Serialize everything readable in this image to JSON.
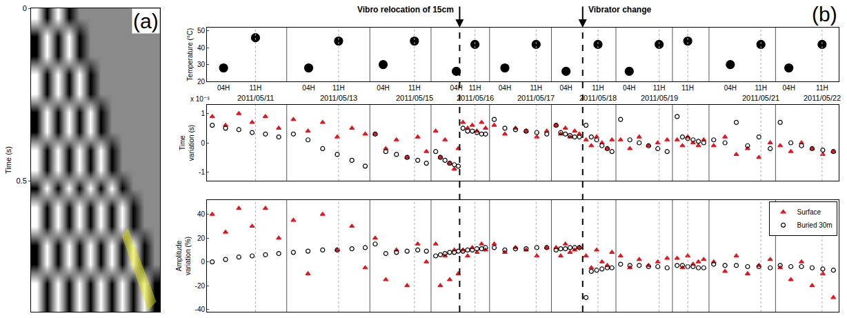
{
  "chart_data": [
    {
      "type": "heatmap",
      "label": "(a)",
      "y_label": "Time (s)",
      "x": [
        0.5,
        1.5,
        2.5,
        3.5,
        4.5,
        5.5,
        6.5,
        7.5,
        8.5,
        9.5,
        10.5,
        11.5
      ],
      "y": [
        0.0275,
        0.0825,
        0.1375,
        0.1925,
        0.2475,
        0.3025,
        0.3575,
        0.4125,
        0.4675,
        0.5225,
        0.5775,
        0.6325,
        0.6875,
        0.7425,
        0.7975,
        0.8525
      ],
      "z": [
        [
          1,
          -1,
          1,
          -1,
          0,
          0,
          0,
          0,
          0,
          0,
          0,
          0
        ],
        [
          -1,
          1,
          -1,
          1,
          -1,
          0,
          0,
          0,
          0,
          0,
          0,
          0
        ],
        [
          -1,
          1,
          -1,
          1,
          -1,
          0,
          0,
          0,
          0,
          0,
          0,
          0
        ],
        [
          1,
          -1,
          1,
          -1,
          1,
          -1,
          0,
          0,
          0,
          0,
          0,
          0
        ],
        [
          1,
          -1,
          1,
          -1,
          1,
          -1,
          0,
          0,
          0,
          0,
          0,
          0
        ],
        [
          -1,
          1,
          -1,
          1,
          -1,
          1,
          -1,
          0,
          0,
          0,
          0,
          0
        ],
        [
          -1,
          1,
          -1,
          1,
          -1,
          1,
          -1,
          0,
          0,
          0,
          0,
          0
        ],
        [
          1,
          -1,
          1,
          -1,
          1,
          -1,
          1,
          -1,
          0,
          0,
          0,
          0
        ],
        [
          1,
          -1,
          1,
          -1,
          1,
          -1,
          1,
          -1,
          0,
          0,
          0,
          0
        ],
        [
          -1,
          1,
          -1,
          1,
          -1,
          1,
          -1,
          1,
          -1,
          0,
          0,
          0
        ],
        [
          1,
          -1,
          1,
          -1,
          1,
          -1,
          1,
          -1,
          1,
          -1,
          0,
          0
        ],
        [
          1,
          -1,
          1,
          -1,
          1,
          -1,
          1,
          -1,
          1,
          -1,
          0,
          0
        ],
        [
          -1,
          1,
          -1,
          1,
          -1,
          1,
          -1,
          1,
          -1,
          1,
          -1,
          0
        ],
        [
          -1,
          1,
          -1,
          1,
          -1,
          1,
          -1,
          1,
          -1,
          1,
          -1,
          0
        ],
        [
          1,
          -1,
          1,
          -1,
          1,
          -1,
          1,
          -1,
          1,
          -1,
          1,
          -1
        ],
        [
          1,
          -1,
          1,
          -1,
          1,
          -1,
          1,
          -1,
          1,
          -1,
          1,
          -1
        ]
      ],
      "zlim": [
        -1,
        1
      ],
      "xlim": [
        0,
        12
      ],
      "ylim": [
        0.88,
        0
      ],
      "yticks": [
        0,
        0.5
      ],
      "tick_labels": "y",
      "window": {
        "x": [
          8.5,
          9.0,
          11.6,
          10.9
        ],
        "y": [
          0.66,
          0.64,
          0.85,
          0.874
        ],
        "color": "#e6e600"
      }
    },
    {
      "type": "scatter",
      "label": "(b)",
      "xlim": [
        0,
        95
      ],
      "legend": "upper right",
      "xticks": [
        {
          "value": 2.5,
          "label": "04H"
        },
        {
          "value": 7.3,
          "label": "11H"
        },
        {
          "value": 15.3,
          "label": "04H"
        },
        {
          "value": 19.8,
          "label": "11H"
        },
        {
          "value": 26.5,
          "label": "04H"
        },
        {
          "value": 31.2,
          "label": "11H"
        },
        {
          "value": 37.5,
          "label": "04H"
        },
        {
          "value": 40.3,
          "label": "11H"
        },
        {
          "value": 44.8,
          "label": "04H"
        },
        {
          "value": 49.5,
          "label": "11H"
        },
        {
          "value": 54,
          "label": "04H"
        },
        {
          "value": 58.8,
          "label": "11H"
        },
        {
          "value": 63.5,
          "label": "04H"
        },
        {
          "value": 68,
          "label": "11H"
        },
        {
          "value": 72.3,
          "label": "11H"
        },
        {
          "value": 78.7,
          "label": "04H"
        },
        {
          "value": 83.3,
          "label": "11H"
        },
        {
          "value": 87.5,
          "label": "04H"
        },
        {
          "value": 92.5,
          "label": "11H"
        }
      ],
      "date_labels": [
        {
          "x": 7.3,
          "text": "2011/05/11"
        },
        {
          "x": 19.8,
          "text": "2011/05/13"
        },
        {
          "x": 31.2,
          "text": "2011/05/15"
        },
        {
          "x": 40.3,
          "text": "2011/05/16"
        },
        {
          "x": 49.5,
          "text": "2011/05/17"
        },
        {
          "x": 58.8,
          "text": "2011/05/18"
        },
        {
          "x": 68,
          "text": "2011/05/19"
        },
        {
          "x": 83.3,
          "text": "2011/05/21"
        },
        {
          "x": 92.5,
          "text": "2011/05/22"
        }
      ],
      "separators": [
        12,
        24.5,
        33.7,
        42.5,
        51.8,
        61.5,
        70,
        75.5,
        85.5
      ],
      "guide_lines": [
        7.3,
        19.8,
        31.2,
        40.3,
        49.5,
        58.8,
        68,
        72.3,
        83.3,
        92.5
      ],
      "events": [
        {
          "x": 38,
          "label": "Vibro relocation of 15cm"
        },
        {
          "x": 56.5,
          "label": "Vibrator change"
        }
      ],
      "panels": [
        {
          "y_label": "Temperature (°C)",
          "ylim": [
            20,
            52
          ],
          "yticks": [
            20,
            30,
            40,
            50
          ],
          "x": [
            2.5,
            7.3,
            15.3,
            19.8,
            26.5,
            31.2,
            37.5,
            40.3,
            44.8,
            49.5,
            54,
            58.8,
            63.5,
            68,
            72.3,
            78.7,
            83.3,
            87.5,
            92.5
          ],
          "series": [
            {
              "color": "black",
              "marker": "circle",
              "values": [
                28,
                46,
                28,
                44,
                30,
                44,
                26,
                42,
                28,
                42,
                26,
                42,
                26,
                42,
                44,
                30,
                42,
                28,
                42
              ]
            }
          ]
        },
        {
          "y_label": "Time variation (s)",
          "multiplier": "x 10⁻³",
          "ylim": [
            -1.3,
            1.3
          ],
          "yticks": [
            -1,
            0,
            1
          ],
          "tick_labels": "y",
          "x": [
            0.8,
            2.8,
            4.8,
            6.8,
            8.8,
            10.8,
            13,
            15.2,
            17.4,
            19.6,
            21.8,
            23.8,
            25.3,
            26.9,
            28.5,
            30.1,
            31.7,
            33,
            34.4,
            35.1,
            35.8,
            36.5,
            37.2,
            37.8,
            38.5,
            39.2,
            39.9,
            40.6,
            41.3,
            41.9,
            43.2,
            44.8,
            46.4,
            48,
            49.6,
            51.1,
            52.5,
            53.2,
            53.9,
            54.6,
            55.3,
            56,
            57,
            57.8,
            58.6,
            59.4,
            60.2,
            60.9,
            62.2,
            63.6,
            65,
            66.4,
            67.8,
            69.2,
            70.7,
            71.5,
            72.3,
            73.1,
            73.9,
            74.7,
            76.2,
            77.9,
            79.6,
            81.3,
            83,
            84.7,
            86.2,
            87.8,
            89.4,
            91,
            92.6,
            94.2
          ],
          "series": [
            {
              "name": "Surface",
              "color": "#e8141c",
              "marker": "triangle",
              "values": [
                0.9,
                0.6,
                1.0,
                0.7,
                0.9,
                0.5,
                0.8,
                0.4,
                0.7,
                0.2,
                0.5,
                0.3,
                0.3,
                -0.2,
                0.1,
                -0.5,
                0.2,
                -0.3,
                0.4,
                -0.5,
                0.1,
                -0.7,
                -0.9,
                -0.2,
                0.7,
                0.5,
                0.6,
                0.4,
                0.7,
                0.5,
                0.6,
                0.3,
                0.5,
                0.4,
                0.2,
                0.4,
                0.6,
                0.3,
                0.5,
                0.2,
                0.4,
                0.3,
                0.1,
                -0.1,
                0.2,
                0.0,
                -0.2,
                0.1,
                0.1,
                -0.2,
                0.2,
                -0.1,
                0.0,
                0.1,
                0.1,
                -0.1,
                0.2,
                0.0,
                -0.1,
                0.1,
                -0.1,
                0.2,
                -0.4,
                -0.2,
                -0.5,
                0.0,
                -0.1,
                -0.3,
                0.0,
                -0.2,
                -0.4,
                -0.3
              ]
            },
            {
              "name": "Buried 30m",
              "color": "black",
              "marker": "open circle",
              "values": [
                0.6,
                0.5,
                0.45,
                0.35,
                0.3,
                0.2,
                0.3,
                0.1,
                -0.2,
                -0.4,
                -0.6,
                -0.8,
                0.3,
                -0.3,
                -0.4,
                -0.5,
                -0.6,
                -0.7,
                -0.3,
                -0.5,
                -0.6,
                -0.7,
                -0.75,
                -0.8,
                0.5,
                0.4,
                0.4,
                0.35,
                0.3,
                0.3,
                0.8,
                0.5,
                0.45,
                0.4,
                0.35,
                0.3,
                0.6,
                0.35,
                0.3,
                0.25,
                0.2,
                0.2,
                0.6,
                0.2,
                0.1,
                -0.1,
                -0.2,
                -0.3,
                0.8,
                0.1,
                0.0,
                -0.1,
                -0.2,
                -0.3,
                0.9,
                0.2,
                0.15,
                0.1,
                0.05,
                0.0,
                0.1,
                0.0,
                0.7,
                -0.1,
                0.2,
                -0.2,
                0.7,
                0.0,
                -0.1,
                -0.2,
                -0.25,
                -0.3
              ]
            }
          ]
        },
        {
          "y_label": "Amplitude variation (%)",
          "ylim": [
            -42,
            52
          ],
          "yticks": [
            -40,
            -20,
            0,
            20,
            40
          ],
          "tick_labels": "y",
          "x": [
            0.8,
            2.8,
            4.8,
            6.8,
            8.8,
            10.8,
            13,
            15.2,
            17.4,
            19.6,
            21.8,
            23.8,
            25.3,
            26.9,
            28.5,
            30.1,
            31.7,
            33,
            34.4,
            35.1,
            35.8,
            36.5,
            37.2,
            37.8,
            38.5,
            39.2,
            39.9,
            40.6,
            41.3,
            41.9,
            43.2,
            44.8,
            46.4,
            48,
            49.6,
            51.1,
            52.5,
            53.2,
            53.9,
            54.6,
            55.3,
            56,
            57,
            57.8,
            58.6,
            59.4,
            60.2,
            60.9,
            62.2,
            63.6,
            65,
            66.4,
            67.8,
            69.2,
            70.7,
            71.5,
            72.3,
            73.1,
            73.9,
            74.7,
            76.2,
            77.9,
            79.6,
            81.3,
            83,
            84.7,
            86.2,
            87.8,
            89.4,
            91,
            92.6,
            94.2
          ],
          "series": [
            {
              "name": "Surface",
              "color": "#e8141c",
              "marker": "triangle",
              "values": [
                40,
                25,
                45,
                30,
                45,
                20,
                35,
                -10,
                40,
                10,
                30,
                -5,
                20,
                -15,
                10,
                -20,
                15,
                0,
                15,
                -20,
                5,
                -15,
                10,
                -10,
                10,
                5,
                12,
                8,
                15,
                10,
                15,
                8,
                12,
                10,
                5,
                12,
                12,
                5,
                15,
                8,
                10,
                12,
                5,
                -5,
                10,
                0,
                -3,
                8,
                5,
                -5,
                2,
                -3,
                0,
                3,
                3,
                -5,
                5,
                -2,
                0,
                2,
                0,
                -8,
                5,
                -10,
                -3,
                2,
                -5,
                -15,
                0,
                -20,
                -10,
                -30
              ]
            },
            {
              "name": "Buried 30m",
              "color": "black",
              "marker": "open circle",
              "values": [
                0,
                2,
                4,
                5,
                6,
                7,
                8,
                9,
                10,
                10,
                11,
                12,
                15,
                7,
                8,
                9,
                10,
                9,
                5,
                6,
                7,
                8,
                8,
                9,
                9,
                10,
                10,
                11,
                11,
                12,
                12,
                10,
                11,
                11,
                12,
                12,
                10,
                11,
                11,
                12,
                12,
                12,
                -30,
                -8,
                -7,
                -6,
                -5,
                -5,
                -2,
                -3,
                -3,
                -4,
                -4,
                -5,
                -3,
                -3,
                -4,
                -4,
                -5,
                -5,
                -2,
                -3,
                -3,
                -4,
                -4,
                -5,
                -3,
                -4,
                -4,
                -5,
                -6,
                -7
              ]
            }
          ]
        }
      ]
    }
  ]
}
